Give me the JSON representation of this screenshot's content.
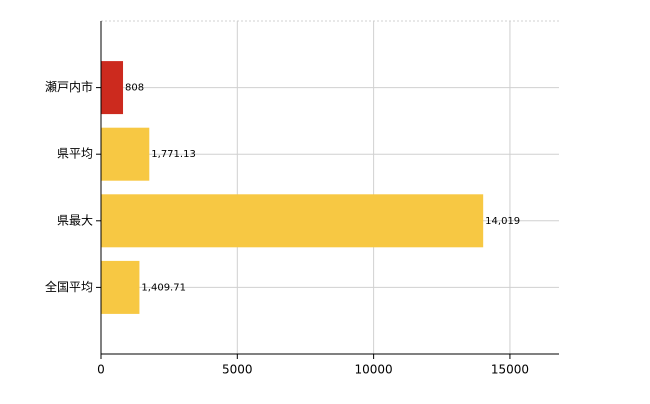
{
  "chart_data": {
    "type": "bar",
    "orientation": "horizontal",
    "categories": [
      "瀬戸内市",
      "県平均",
      "県最大",
      "全国平均"
    ],
    "values": [
      808,
      1771.13,
      14019,
      1409.71
    ],
    "value_labels": [
      "808",
      "1,771.13",
      "14,019",
      "1,409.71"
    ],
    "colors": [
      "#cc2a1e",
      "#f7c843",
      "#f7c843",
      "#f7c843"
    ],
    "xlim": [
      0,
      16800
    ],
    "xticks": [
      0,
      5000,
      10000,
      15000
    ],
    "grid": true
  }
}
